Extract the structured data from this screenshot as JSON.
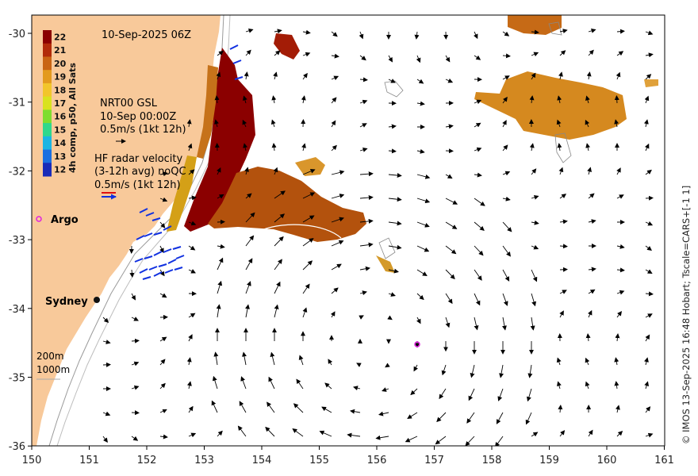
{
  "map": {
    "date_label": "10-Sep-2025 06Z",
    "colorbar": {
      "title": "4h comp, p50, All Sats",
      "ticks": [
        "22",
        "21",
        "20",
        "19",
        "18",
        "17",
        "16",
        "15",
        "14",
        "13",
        "12"
      ],
      "colors": [
        "#8b0000",
        "#b22b0a",
        "#c96414",
        "#e39a1e",
        "#f2c52b",
        "#d9e21f",
        "#7fdd2f",
        "#2fd88c",
        "#1bb5e2",
        "#1c6fe0",
        "#1a2bb8"
      ]
    },
    "geostrophic_legend": {
      "line1": "NRT00 GSL",
      "line2": "10-Sep 00:00Z",
      "line3": "0.5m/s (1kt 12h)"
    },
    "radar_legend": {
      "line1": "HF radar velocity",
      "line2": "(3-12h avg) noQC",
      "line3": "0.5m/s (1kt 12h)"
    },
    "labels": {
      "argo": "Argo",
      "sydney": "Sydney",
      "isobath_200": "200m",
      "isobath_1000": "1000m"
    },
    "credit": "© IMOS 13-Sep-2025 16:48 Hobart; Tscale=CARS+[-1 1]",
    "x_ticks": [
      "150",
      "151",
      "152",
      "153",
      "154",
      "155",
      "156",
      "157",
      "158",
      "159",
      "160",
      "161"
    ],
    "y_ticks": [
      "-30",
      "-31",
      "-32",
      "-33",
      "-34",
      "-35",
      "-36"
    ],
    "colors": {
      "land": "#f8c99a",
      "ocean": "#ffffff",
      "argo": "#e020e0",
      "radar_arrow": "#1030e0"
    }
  }
}
